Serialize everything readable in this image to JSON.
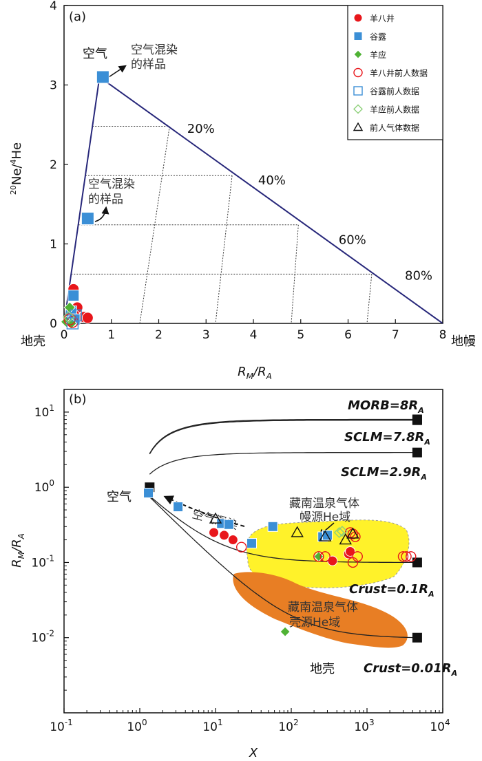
{
  "chart_data": [
    {
      "panel_label": "(a)",
      "type": "scatter",
      "xlabel": "R_M/R_A",
      "xlabel_main": "R",
      "xlabel_sub_num": "M",
      "xlabel_sep": "/R",
      "xlabel_sub_den": "A",
      "ylabel": "20Ne/4He",
      "ylabel_sup1": "20",
      "ylabel_main1": "Ne/",
      "ylabel_sup2": "4",
      "ylabel_main2": "He",
      "xlim": [
        0,
        8
      ],
      "ylim": [
        0,
        4
      ],
      "xticks": [
        "0",
        "1",
        "2",
        "3",
        "4",
        "5",
        "6",
        "7",
        "8"
      ],
      "yticks": [
        "0",
        "1",
        "2",
        "3",
        "4"
      ],
      "mixing_triangle": [
        [
          0,
          0
        ],
        [
          0.75,
          3.1
        ],
        [
          8,
          0
        ]
      ],
      "mantle_pct_labels": [
        {
          "text": "20%",
          "x": 2.6,
          "y": 2.4
        },
        {
          "text": "40%",
          "x": 4.1,
          "y": 1.75
        },
        {
          "text": "60%",
          "x": 5.8,
          "y": 1.0
        },
        {
          "text": "80%",
          "x": 7.2,
          "y": 0.55
        }
      ],
      "mantle_fraction_lines": [
        {
          "y": 2.48,
          "x_left": 0.6,
          "x_right": 2.23,
          "base_x": 1.6
        },
        {
          "y": 1.86,
          "x_left": 0.45,
          "x_right": 3.55,
          "base_x": 3.2
        },
        {
          "y": 1.24,
          "x_left": 0.3,
          "x_right": 4.95,
          "base_x": 4.8
        },
        {
          "y": 0.62,
          "x_left": 0.15,
          "x_right": 6.5,
          "base_x": 6.4
        }
      ],
      "endmember_labels": {
        "air": "空气",
        "crust": "地壳",
        "mantle": "地幔"
      },
      "air_contaminated_label_line1": "空气混染",
      "air_contaminated_label_line2": "的样品",
      "legend": [
        {
          "label": "羊八井",
          "marker": "circle",
          "filled": true,
          "color": "#e8161b"
        },
        {
          "label": "谷露",
          "marker": "square",
          "filled": true,
          "color": "#3b8fd6"
        },
        {
          "label": "羊应",
          "marker": "diamond",
          "filled": true,
          "color": "#4fb234"
        },
        {
          "label": "羊八井前人数据",
          "marker": "circle",
          "filled": false,
          "color": "#e8161b"
        },
        {
          "label": "谷露前人数据",
          "marker": "square",
          "filled": false,
          "color": "#3b8fd6"
        },
        {
          "label": "羊应前人数据",
          "marker": "diamond",
          "filled": false,
          "color": "#8ed07a"
        },
        {
          "label": "前人气体数据",
          "marker": "triangle",
          "filled": false,
          "color": "#111111"
        }
      ],
      "series": [
        {
          "name": "谷露 (air contaminated)",
          "points": [
            [
              0.82,
              3.1
            ],
            [
              0.5,
              1.32
            ]
          ]
        },
        {
          "name": "羊八井",
          "points": [
            [
              0.2,
              0.43
            ],
            [
              0.28,
              0.2
            ],
            [
              0.42,
              0.08
            ],
            [
              0.5,
              0.07
            ],
            [
              0.22,
              0.1
            ]
          ]
        },
        {
          "name": "谷露",
          "points": [
            [
              0.2,
              0.35
            ],
            [
              0.15,
              0.15
            ],
            [
              0.22,
              0.05
            ]
          ]
        },
        {
          "name": "羊应",
          "points": [
            [
              0.12,
              0.2
            ],
            [
              0.05,
              0.02
            ],
            [
              0.15,
              0.0
            ]
          ]
        },
        {
          "name": "羊八井前人数据",
          "points": [
            [
              0.12,
              0.05
            ],
            [
              0.18,
              0.02
            ]
          ]
        },
        {
          "name": "谷露前人数据",
          "points": [
            [
              0.18,
              0.0
            ],
            [
              0.25,
              0.1
            ]
          ]
        },
        {
          "name": "羊应前人数据",
          "points": [
            [
              0.1,
              0.08
            ]
          ]
        }
      ]
    },
    {
      "panel_label": "(b)",
      "type": "scatter",
      "xlabel": "X",
      "ylabel": "R_M/R_A",
      "ylabel_main": "R",
      "ylabel_sub_num": "M",
      "ylabel_sep": "/R",
      "ylabel_sub_den": "A",
      "xscale": "log",
      "yscale": "log",
      "xlim": [
        0.1,
        10000
      ],
      "ylim": [
        0.001,
        20
      ],
      "xticks": [
        {
          "base": "10",
          "exp": "-1",
          "value": 0.1
        },
        {
          "base": "10",
          "exp": "0",
          "value": 1
        },
        {
          "base": "10",
          "exp": "1",
          "value": 10
        },
        {
          "base": "10",
          "exp": "2",
          "value": 100
        },
        {
          "base": "10",
          "exp": "3",
          "value": 1000
        },
        {
          "base": "10",
          "exp": "4",
          "value": 10000
        }
      ],
      "yticks": [
        {
          "base": "10",
          "exp": "-2",
          "value": 0.01
        },
        {
          "base": "10",
          "exp": "-1",
          "value": 0.1
        },
        {
          "base": "10",
          "exp": "0",
          "value": 1
        },
        {
          "base": "10",
          "exp": "1",
          "value": 10
        }
      ],
      "air_label": "空气",
      "crust_label": "地壳",
      "air_contamination_label": "空气混染",
      "mixing_curves": [
        {
          "label_main": "MORB=8R",
          "label_sub": "A",
          "end_ratio": 8
        },
        {
          "label_main": "SCLM=7.8R",
          "label_sub": "A",
          "end_ratio": 7.8
        },
        {
          "label_main": "SCLM=2.9R",
          "label_sub": "A",
          "end_ratio": 2.9
        },
        {
          "label_main": "Crust=0.1R",
          "label_sub": "A",
          "end_ratio": 0.1
        },
        {
          "label_main": "Crust=0.01R",
          "label_sub": "A",
          "end_ratio": 0.01
        }
      ],
      "region_mantle_line1": "藏南温泉气体",
      "region_mantle_line2": "幔源He域",
      "region_crust_line1": "藏南温泉气体",
      "region_crust_line2": "壳源He域",
      "series": [
        {
          "name": "羊八井",
          "points": [
            [
              9.5,
              0.25
            ],
            [
              13,
              0.23
            ],
            [
              17,
              0.2
            ],
            [
              350,
              0.105
            ],
            [
              570,
              0.13
            ],
            [
              600,
              0.14
            ]
          ]
        },
        {
          "name": "谷露",
          "points": [
            [
              1.3,
              0.84
            ],
            [
              3.2,
              0.55
            ],
            [
              12,
              0.33
            ],
            [
              15,
              0.32
            ],
            [
              30,
              0.18
            ],
            [
              57,
              0.3
            ],
            [
              260,
              0.22
            ],
            [
              300,
              0.23
            ]
          ]
        },
        {
          "name": "羊应",
          "points": [
            [
              83,
              0.012
            ],
            [
              230,
              0.12
            ]
          ]
        },
        {
          "name": "羊八井前人数据",
          "points": [
            [
              22,
              0.16
            ],
            [
              230,
              0.12
            ],
            [
              280,
              0.12
            ],
            [
              600,
              0.25
            ],
            [
              650,
              0.24
            ],
            [
              700,
              0.22
            ],
            [
              650,
              0.1
            ],
            [
              750,
              0.12
            ],
            [
              3000,
              0.12
            ],
            [
              3300,
              0.12
            ],
            [
              3800,
              0.12
            ]
          ]
        },
        {
          "name": "羊应前人数据",
          "points": [
            [
              430,
              0.25
            ],
            [
              470,
              0.26
            ]
          ]
        },
        {
          "name": "前人气体数据",
          "points": [
            [
              10,
              0.38
            ],
            [
              120,
              0.25
            ],
            [
              280,
              0.22
            ],
            [
              520,
              0.2
            ],
            [
              650,
              0.24
            ]
          ]
        }
      ]
    }
  ]
}
